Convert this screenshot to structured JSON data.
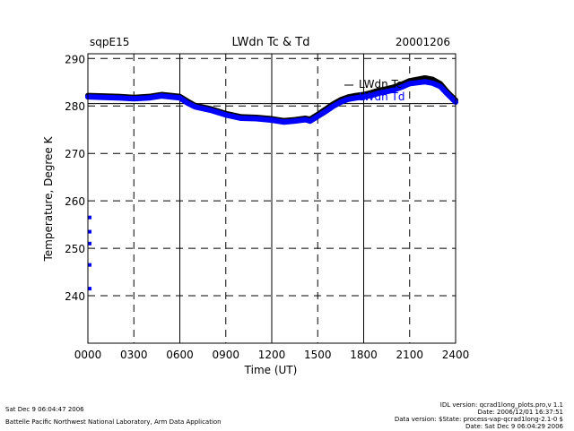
{
  "header": {
    "site": "sqpE15",
    "title": "LWdn Tc & Td",
    "date": "20001206"
  },
  "footer": {
    "run_time": "Sat Dec  9 06:04:47 2006",
    "lab": "Battelle Pacific Northwest National Laboratory, Arm Data Application",
    "idl_version": "IDL version: qcrad1long_plots.pro,v 1.1",
    "code_date": "Date: 2006/12/01 16:37:51",
    "data_version": "Data version: $State: process-vap-qcrad1long-2.1-0 $",
    "data_date": "Date: Sat Dec  9 06:04:29 2006"
  },
  "chart_data": {
    "type": "line",
    "title": "LWdn Tc & Td",
    "xlabel": "Time (UT)",
    "ylabel": "Temperature, Degree K",
    "xlim": [
      0,
      2400
    ],
    "ylim": [
      230,
      291
    ],
    "x_ticks": [
      "0000",
      "0300",
      "0600",
      "0900",
      "1200",
      "1500",
      "1800",
      "2100",
      "2400"
    ],
    "y_ticks": [
      240,
      250,
      260,
      270,
      280,
      290
    ],
    "grid": true,
    "reference_line_y": 280.5,
    "legend_position": "top-right",
    "series": [
      {
        "name": "LWdn Tc",
        "color": "#000000",
        "x": [
          0,
          100,
          200,
          300,
          400,
          480,
          600,
          650,
          700,
          800,
          900,
          1000,
          1100,
          1200,
          1280,
          1350,
          1420,
          1450,
          1500,
          1550,
          1600,
          1650,
          1700,
          1750,
          1800,
          1850,
          1900,
          1950,
          2000,
          2050,
          2100,
          2150,
          2200,
          2250,
          2300,
          2350,
          2400
        ],
        "y": [
          282.2,
          282.1,
          282.0,
          281.8,
          282.0,
          282.4,
          282.0,
          281.0,
          280.1,
          279.4,
          278.4,
          277.7,
          277.6,
          277.3,
          276.9,
          277.1,
          277.4,
          277.2,
          278.2,
          279.3,
          280.4,
          281.3,
          281.9,
          282.2,
          282.4,
          282.8,
          283.3,
          283.6,
          284.0,
          284.6,
          285.3,
          285.6,
          285.9,
          285.6,
          284.7,
          282.8,
          281.2
        ]
      },
      {
        "name": "LWdn Td",
        "color": "#0000ff",
        "x": [
          0,
          100,
          200,
          300,
          400,
          480,
          600,
          650,
          700,
          800,
          900,
          1000,
          1100,
          1200,
          1280,
          1350,
          1420,
          1450,
          1500,
          1550,
          1600,
          1650,
          1700,
          1750,
          1800,
          1850,
          1900,
          1950,
          2000,
          2050,
          2100,
          2150,
          2200,
          2250,
          2300,
          2350,
          2400
        ],
        "y": [
          281.9,
          281.8,
          281.7,
          281.5,
          281.7,
          282.1,
          281.7,
          280.6,
          279.8,
          279.1,
          278.1,
          277.4,
          277.3,
          277.0,
          276.6,
          276.8,
          277.1,
          276.8,
          277.8,
          278.8,
          279.9,
          280.8,
          281.4,
          281.7,
          281.9,
          282.2,
          282.7,
          283.0,
          283.4,
          284.0,
          284.7,
          284.9,
          285.1,
          284.8,
          284.1,
          282.4,
          280.8
        ],
        "extra_points_x": [
          0,
          0,
          0,
          0,
          0
        ],
        "extra_points_y": [
          256.5,
          253.5,
          251.0,
          246.5,
          241.5
        ]
      }
    ]
  }
}
